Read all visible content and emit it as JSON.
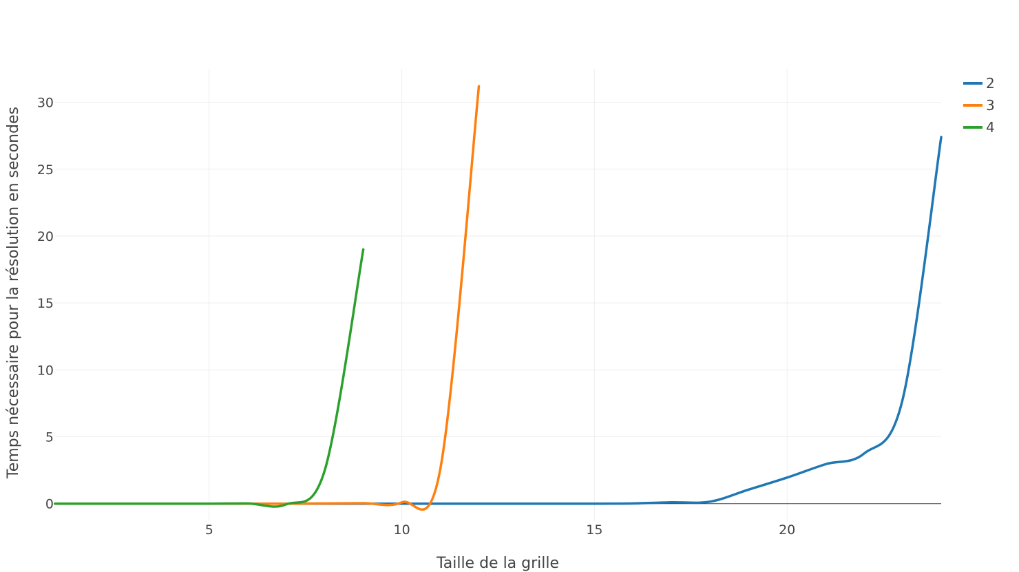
{
  "chart_data": {
    "type": "line",
    "xlabel": "Taille de la grille",
    "ylabel": "Temps nécessaire pour la résolution en secondes",
    "xlim": [
      1,
      24
    ],
    "ylim": [
      -1.3,
      32.5
    ],
    "xticks": [
      5,
      10,
      15,
      20
    ],
    "yticks": [
      0,
      5,
      10,
      15,
      20,
      25,
      30
    ],
    "grid": true,
    "legend_position": "top-right",
    "series": [
      {
        "name": "2",
        "color": "#1f77b4",
        "x": [
          1,
          2,
          3,
          4,
          5,
          6,
          7,
          8,
          9,
          10,
          11,
          12,
          13,
          14,
          15,
          16,
          17,
          18,
          19,
          20,
          21,
          22,
          23,
          24
        ],
        "y": [
          0,
          0,
          0,
          0,
          0,
          0,
          0,
          0,
          0,
          0,
          0,
          0,
          0,
          0,
          0,
          0.02,
          0.1,
          0.15,
          1.05,
          1.95,
          2.95,
          3.75,
          7.8,
          27.4
        ]
      },
      {
        "name": "3",
        "color": "#ff7f0e",
        "x": [
          1,
          2,
          3,
          4,
          5,
          6,
          7,
          8,
          9,
          10,
          11,
          12
        ],
        "y": [
          0,
          0,
          0,
          0,
          0,
          0,
          0,
          0.02,
          0.04,
          0.1,
          2.6,
          31.2
        ]
      },
      {
        "name": "4",
        "color": "#2ca02c",
        "x": [
          1,
          2,
          3,
          4,
          5,
          6,
          7,
          8,
          9
        ],
        "y": [
          0,
          0,
          0,
          0,
          0,
          0.02,
          -0.05,
          2.5,
          19
        ]
      }
    ]
  }
}
